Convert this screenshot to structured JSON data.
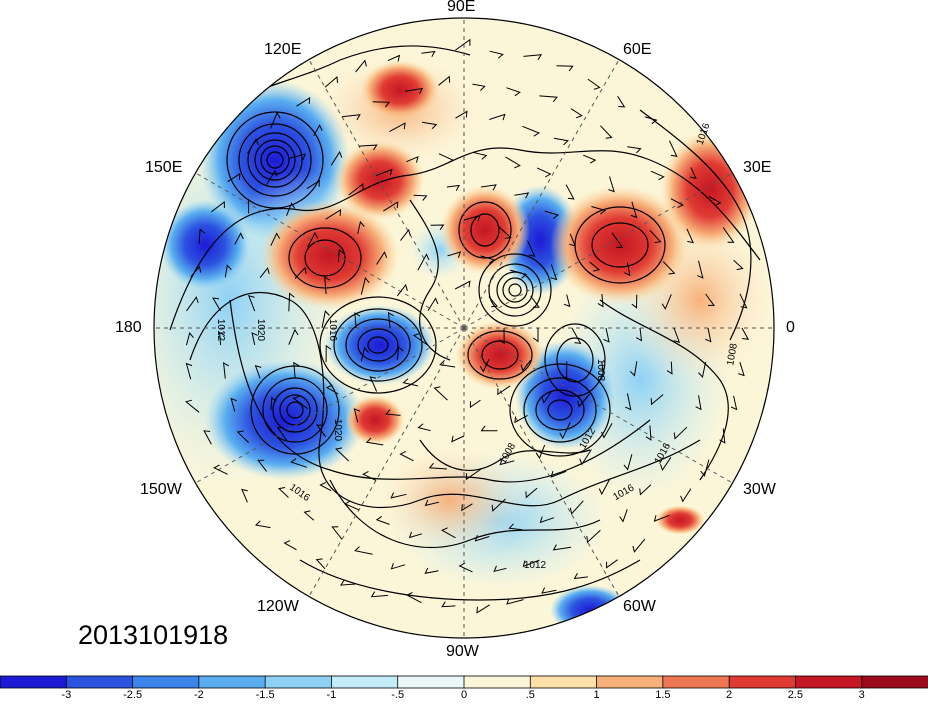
{
  "map": {
    "longitude_labels": [
      "90E",
      "60E",
      "30E",
      "0",
      "30W",
      "60W",
      "90W",
      "120W",
      "150W",
      "180",
      "150E",
      "120E"
    ],
    "contour_labels": [
      "1016",
      "1012",
      "1020",
      "1016",
      "1008",
      "1008",
      "1012",
      "1016",
      "1016",
      "1012",
      "1016",
      "1020",
      "1008"
    ],
    "timestamp": "2013101918"
  },
  "colorbar": {
    "colors": [
      "#1d1ad6",
      "#2c53e0",
      "#3b84ea",
      "#5aaef0",
      "#8ed1f5",
      "#c3ecf8",
      "#e9f8f6",
      "#fcf6d9",
      "#fde0a8",
      "#f7b07a",
      "#ef7854",
      "#e03b33",
      "#c41624",
      "#9a0a1a"
    ],
    "tick_labels": [
      "-3",
      "-2.5",
      "-2",
      "-1.5",
      "-1",
      "-.5",
      "0",
      ".5",
      "1",
      "1.5",
      "2",
      "2.5",
      "3"
    ]
  }
}
